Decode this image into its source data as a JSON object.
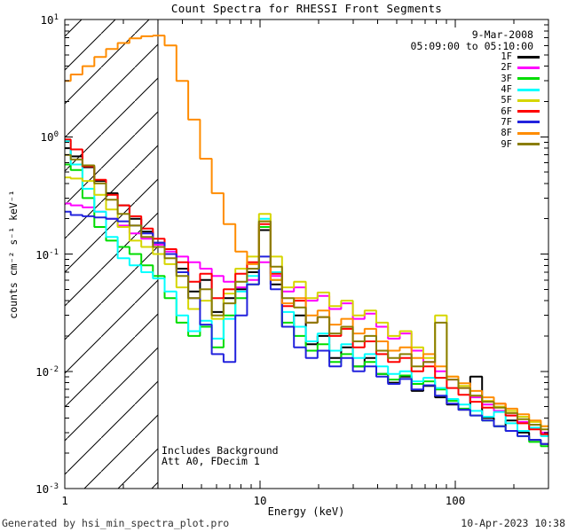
{
  "title": "Count Spectra for RHESSI Front Segments",
  "legend": {
    "date": "9-Mar-2008",
    "time_range": "05:09:00 to 05:10:00"
  },
  "annotations": {
    "line1": "Includes Background",
    "line2": "Att A0, FDecim 1"
  },
  "footer": {
    "left": "Generated by hsi_min_spectra_plot.pro",
    "right": "10-Apr-2023 10:38"
  },
  "chart_data": {
    "type": "line",
    "subtype": "log-log step histogram spectra",
    "title": "Count Spectra for RHESSI Front Segments",
    "xlabel": "Energy (keV)",
    "ylabel": "counts cm⁻² s⁻¹ keV⁻¹",
    "xlim": [
      1,
      300
    ],
    "ylim": [
      0.001,
      10
    ],
    "xscale": "log",
    "yscale": "log",
    "grid": false,
    "legend_position": "top-right",
    "hatch_region": {
      "x_min": 1,
      "x_max": 3
    },
    "x_ticks": [
      {
        "label": "1",
        "value": 1
      },
      {
        "label": "10",
        "value": 10
      },
      {
        "label": "100",
        "value": 100
      }
    ],
    "y_ticks": [
      {
        "base": "10",
        "exp": "1",
        "value": 10
      },
      {
        "base": "10",
        "exp": "0",
        "value": 1
      },
      {
        "base": "10",
        "exp": "-1",
        "value": 0.1
      },
      {
        "base": "10",
        "exp": "-2",
        "value": 0.01
      },
      {
        "base": "10",
        "exp": "-3",
        "value": 0.001
      }
    ],
    "energies": [
      1.0,
      1.15,
      1.32,
      1.52,
      1.74,
      2.0,
      2.3,
      2.64,
      3.03,
      3.48,
      4.0,
      4.6,
      5.28,
      6.07,
      6.97,
      8.01,
      9.2,
      10.6,
      12.1,
      13.9,
      16.0,
      18.4,
      21.1,
      24.3,
      27.9,
      32.0,
      36.8,
      42.2,
      48.5,
      55.7,
      64.0,
      73.5,
      84.4,
      97.0,
      111,
      128,
      147,
      169,
      194,
      223,
      256,
      294
    ],
    "series": [
      {
        "name": "1F",
        "color": "#000000",
        "values": [
          0.8,
          0.68,
          0.55,
          0.42,
          0.33,
          0.26,
          0.2,
          0.155,
          0.125,
          0.1,
          0.075,
          0.048,
          0.06,
          0.032,
          0.042,
          0.05,
          0.07,
          0.16,
          0.055,
          0.024,
          0.03,
          0.017,
          0.02,
          0.013,
          0.016,
          0.011,
          0.013,
          0.0095,
          0.008,
          0.009,
          0.0068,
          0.0075,
          0.006,
          0.0052,
          0.0047,
          0.009,
          0.004,
          0.0034,
          0.0038,
          0.003,
          0.0026,
          0.0024
        ]
      },
      {
        "name": "2F",
        "color": "#ff00ff",
        "values": [
          0.27,
          0.26,
          0.25,
          0.23,
          0.2,
          0.175,
          0.15,
          0.135,
          0.12,
          0.105,
          0.095,
          0.085,
          0.075,
          0.065,
          0.058,
          0.052,
          0.06,
          0.085,
          0.065,
          0.048,
          0.052,
          0.04,
          0.044,
          0.034,
          0.038,
          0.028,
          0.031,
          0.024,
          0.019,
          0.021,
          0.015,
          0.012,
          0.01,
          0.0085,
          0.0072,
          0.006,
          0.0052,
          0.0046,
          0.0042,
          0.0037,
          0.0033,
          0.003
        ]
      },
      {
        "name": "3F",
        "color": "#00dd00",
        "values": [
          0.58,
          0.52,
          0.3,
          0.17,
          0.13,
          0.115,
          0.1,
          0.08,
          0.065,
          0.042,
          0.026,
          0.02,
          0.024,
          0.016,
          0.03,
          0.042,
          0.055,
          0.17,
          0.06,
          0.026,
          0.02,
          0.015,
          0.017,
          0.012,
          0.014,
          0.011,
          0.012,
          0.0095,
          0.0085,
          0.0092,
          0.0078,
          0.0082,
          0.007,
          0.0056,
          0.0048,
          0.0042,
          0.0038,
          0.0034,
          0.0031,
          0.0028,
          0.0025,
          0.0023
        ]
      },
      {
        "name": "4F",
        "color": "#00ffff",
        "values": [
          0.92,
          0.58,
          0.36,
          0.23,
          0.14,
          0.092,
          0.08,
          0.07,
          0.062,
          0.048,
          0.03,
          0.022,
          0.027,
          0.019,
          0.028,
          0.048,
          0.065,
          0.2,
          0.07,
          0.032,
          0.024,
          0.018,
          0.021,
          0.015,
          0.017,
          0.013,
          0.014,
          0.011,
          0.0095,
          0.01,
          0.0082,
          0.0088,
          0.0072,
          0.0058,
          0.0052,
          0.0046,
          0.0041,
          0.0045,
          0.0036,
          0.0031,
          0.0033,
          0.0028
        ]
      },
      {
        "name": "5F",
        "color": "#d6d600",
        "values": [
          0.45,
          0.44,
          0.42,
          0.32,
          0.24,
          0.17,
          0.13,
          0.115,
          0.1,
          0.082,
          0.052,
          0.034,
          0.04,
          0.028,
          0.046,
          0.075,
          0.095,
          0.22,
          0.095,
          0.052,
          0.058,
          0.042,
          0.047,
          0.036,
          0.04,
          0.03,
          0.033,
          0.026,
          0.02,
          0.022,
          0.016,
          0.013,
          0.03,
          0.009,
          0.0075,
          0.0062,
          0.0056,
          0.005,
          0.0046,
          0.0041,
          0.0037,
          0.0034
        ]
      },
      {
        "name": "6F",
        "color": "#ff0000",
        "values": [
          0.95,
          0.78,
          0.56,
          0.43,
          0.32,
          0.26,
          0.21,
          0.165,
          0.135,
          0.11,
          0.085,
          0.058,
          0.068,
          0.042,
          0.05,
          0.068,
          0.085,
          0.18,
          0.068,
          0.036,
          0.04,
          0.026,
          0.029,
          0.02,
          0.023,
          0.016,
          0.018,
          0.014,
          0.012,
          0.013,
          0.01,
          0.011,
          0.0088,
          0.0072,
          0.0063,
          0.0055,
          0.0049,
          0.0053,
          0.0042,
          0.0036,
          0.0032,
          0.0029
        ]
      },
      {
        "name": "7F",
        "color": "#2222dd",
        "values": [
          0.23,
          0.215,
          0.21,
          0.205,
          0.2,
          0.19,
          0.175,
          0.15,
          0.125,
          0.1,
          0.07,
          0.042,
          0.025,
          0.014,
          0.012,
          0.03,
          0.055,
          0.095,
          0.05,
          0.024,
          0.016,
          0.013,
          0.015,
          0.011,
          0.013,
          0.01,
          0.011,
          0.009,
          0.0078,
          0.0086,
          0.007,
          0.0076,
          0.0062,
          0.0053,
          0.0047,
          0.0042,
          0.0038,
          0.0034,
          0.0031,
          0.0028,
          0.0026,
          0.0024
        ]
      },
      {
        "name": "8F",
        "color": "#ff8c00",
        "values": [
          3.0,
          3.4,
          4.0,
          4.8,
          5.6,
          6.3,
          6.9,
          7.2,
          7.3,
          6.0,
          3.0,
          1.4,
          0.65,
          0.33,
          0.18,
          0.105,
          0.082,
          0.19,
          0.06,
          0.038,
          0.042,
          0.03,
          0.033,
          0.025,
          0.028,
          0.021,
          0.023,
          0.018,
          0.015,
          0.016,
          0.013,
          0.014,
          0.011,
          0.009,
          0.0079,
          0.0068,
          0.006,
          0.0053,
          0.0048,
          0.0043,
          0.0038,
          0.0034
        ]
      },
      {
        "name": "9F",
        "color": "#8a7d00",
        "values": [
          0.7,
          0.64,
          0.57,
          0.4,
          0.29,
          0.22,
          0.175,
          0.14,
          0.115,
          0.092,
          0.065,
          0.042,
          0.05,
          0.03,
          0.038,
          0.058,
          0.075,
          0.19,
          0.078,
          0.042,
          0.035,
          0.026,
          0.029,
          0.021,
          0.024,
          0.018,
          0.02,
          0.015,
          0.013,
          0.014,
          0.011,
          0.012,
          0.026,
          0.0085,
          0.0072,
          0.0062,
          0.0055,
          0.0049,
          0.0044,
          0.0039,
          0.0035,
          0.0032
        ]
      }
    ]
  }
}
